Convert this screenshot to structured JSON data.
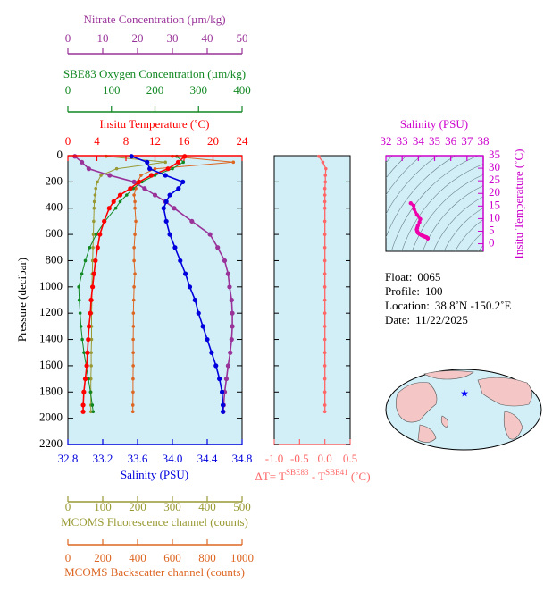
{
  "chart_data": [
    {
      "type": "profile",
      "ylabel": "Pressure (decibar)",
      "ylim": [
        0,
        2200
      ],
      "yticks": [
        0,
        200,
        400,
        600,
        800,
        1000,
        1200,
        1400,
        1600,
        1800,
        2000,
        2200
      ],
      "y": [
        5,
        50,
        100,
        150,
        200,
        250,
        300,
        350,
        400,
        500,
        600,
        700,
        800,
        900,
        1000,
        1100,
        1200,
        1300,
        1400,
        1500,
        1600,
        1700,
        1800,
        1900,
        1950
      ],
      "x_axes": [
        {
          "label": "Insitu Temperature (˚C)",
          "color": "#ff0000",
          "xlim": [
            0,
            24
          ],
          "xticks": [
            0,
            4,
            8,
            12,
            16,
            20,
            24
          ],
          "values": [
            16.1,
            15.2,
            13.8,
            11.5,
            9.8,
            8.6,
            7.2,
            6.3,
            5.7,
            5.0,
            4.4,
            4.1,
            3.8,
            3.6,
            3.4,
            3.2,
            3.1,
            2.9,
            2.8,
            2.7,
            2.6,
            2.4,
            2.2,
            2.1,
            2.1
          ]
        },
        {
          "label": "Salinity (PSU)",
          "color": "#0000dd",
          "xlim": [
            32.8,
            34.8
          ],
          "xticks": [
            32.8,
            33.2,
            33.6,
            {
              "value": 34,
              "label": "34.0"
            },
            34.4,
            34.8
          ],
          "values": [
            33.53,
            33.71,
            33.74,
            33.92,
            34.12,
            34.07,
            33.97,
            33.93,
            33.9,
            33.93,
            33.97,
            34.03,
            34.09,
            34.15,
            34.2,
            34.26,
            34.3,
            34.35,
            34.4,
            34.45,
            34.5,
            34.54,
            34.57,
            34.58,
            34.58
          ]
        },
        {
          "label": "SBE83 Oxygen Concentration (µm/kg)",
          "color": "#118822",
          "xlim": [
            0,
            400
          ],
          "xticks": [
            0,
            100,
            200,
            300,
            400
          ],
          "values": [
            250,
            265,
            240,
            200,
            170,
            150,
            135,
            120,
            110,
            85,
            65,
            50,
            40,
            32,
            25,
            26,
            28,
            30,
            33,
            37,
            42,
            47,
            52,
            56,
            58
          ]
        },
        {
          "label": "Nitrate Concentration (µm/kg)",
          "color": "#993399",
          "xlim": [
            0,
            50
          ],
          "xticks": [
            0,
            10,
            20,
            30,
            40,
            50
          ],
          "values": [
            2,
            4,
            6,
            12,
            19,
            22,
            25,
            28,
            30.5,
            35.6,
            40.8,
            43,
            45,
            46,
            46.4,
            47,
            47.2,
            47.2,
            47,
            46.6,
            46,
            45.5,
            45,
            44.7,
            44.6
          ]
        },
        {
          "label": "MCOMS Fluorescence channel (counts)",
          "color": "#999933",
          "xlim": [
            0,
            500
          ],
          "xticks": [
            0,
            100,
            200,
            300,
            400,
            500
          ],
          "values": [
            110,
            280,
            140,
            95,
            85,
            80,
            78,
            76,
            75,
            74,
            73,
            72,
            71,
            70,
            69,
            69,
            68,
            68,
            68,
            67,
            67,
            66,
            66,
            66,
            66
          ]
        },
        {
          "label": "MCOMS Backscatter channel (counts)",
          "color": "#dd6622",
          "xlim": [
            0,
            1000
          ],
          "xticks": [
            0,
            200,
            400,
            600,
            800,
            1000
          ],
          "values": [
            600,
            950,
            500,
            420,
            400,
            390,
            380,
            385,
            385,
            390,
            385,
            380,
            380,
            385,
            380,
            378,
            376,
            376,
            375,
            375,
            375,
            374,
            374,
            373,
            373
          ]
        }
      ]
    },
    {
      "type": "difference",
      "color": "#ff6666",
      "xlabel_parts": [
        "ΔT= T",
        "SBE83",
        " - T",
        "SBE41",
        " (˚C)"
      ],
      "xlim": [
        -1.0,
        0.5
      ],
      "xticks": [
        {
          "value": -1,
          "label": "-1.0"
        },
        -0.5,
        {
          "value": 0,
          "label": "0.0"
        },
        0.5
      ],
      "values": [
        -0.12,
        -0.04,
        0.02,
        0.01,
        0.01,
        0,
        0,
        0,
        0,
        0,
        0,
        0,
        0,
        0,
        0,
        0,
        0,
        0,
        0,
        0,
        0,
        0,
        0,
        0,
        0
      ]
    },
    {
      "type": "ts",
      "color": "#ee00aa",
      "xlabel": "Salinity (PSU)",
      "xlim": [
        32,
        38
      ],
      "xticks": [
        32,
        33,
        34,
        35,
        36,
        37,
        38
      ],
      "ylabel": "Insitu Temperature (˚C)",
      "ylim": [
        -3,
        35
      ],
      "yticks": [
        0,
        5,
        10,
        15,
        20,
        25,
        30,
        35
      ]
    }
  ],
  "info": [
    {
      "label": "Float:",
      "value": "0065"
    },
    {
      "label": "Profile:",
      "value": "100"
    },
    {
      "label": "Location:",
      "value": "38.8˚N  -150.2˚E"
    },
    {
      "label": "Date:",
      "value": "11/22/2025"
    }
  ]
}
